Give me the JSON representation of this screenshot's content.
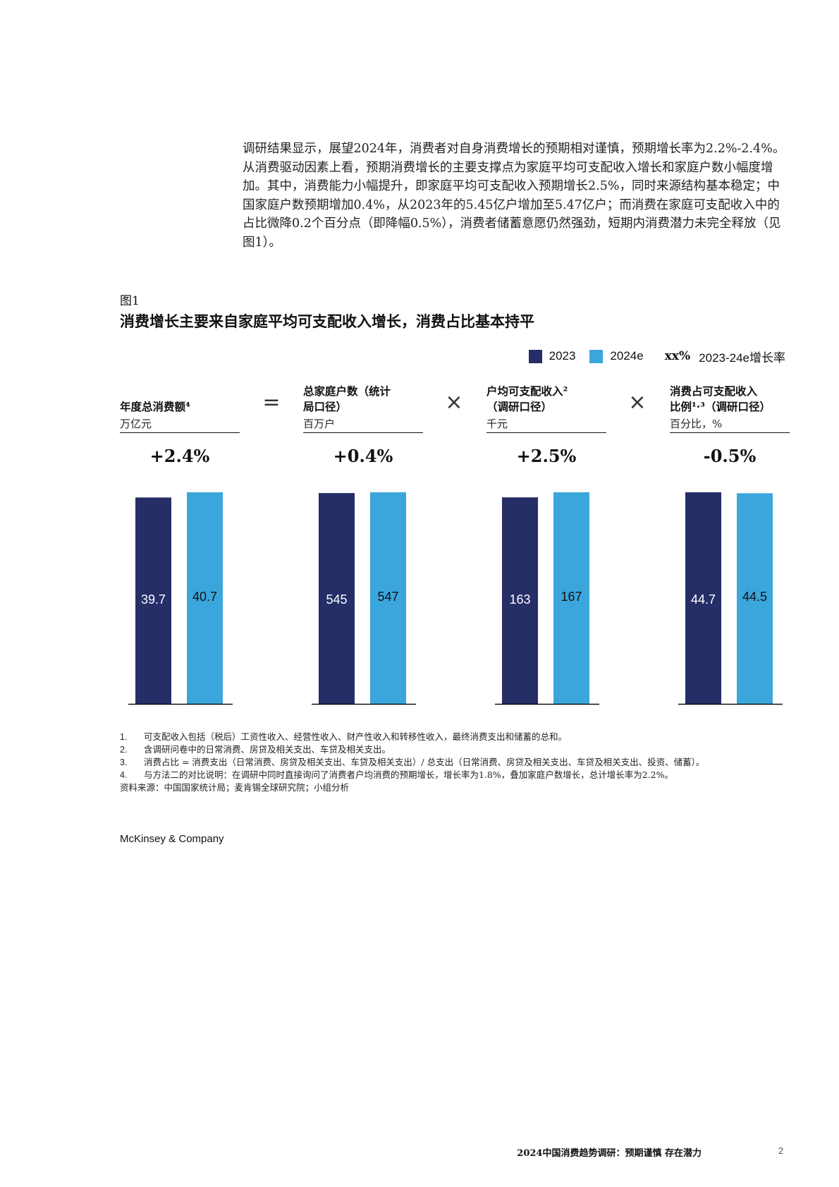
{
  "intro_paragraph": "调研结果显示，展望2024年，消费者对自身消费增长的预期相对谨慎，预期增长率为2.2%-2.4%。从消费驱动因素上看，预期消费增长的主要支撑点为家庭平均可支配收入增长和家庭户数小幅度增加。其中，消费能力小幅提升，即家庭平均可支配收入预期增长2.5%，同时来源结构基本稳定；中国家庭户数预期增加0.4%，从2023年的5.45亿户增加至5.47亿户；而消费在家庭可支配收入中的占比微降0.2个百分点（即降幅0.5%），消费者储蓄意愿仍然强劲，短期内消费潜力未完全释放（见图1）。",
  "figure": {
    "label": "图1",
    "title": "消费增长主要来自家庭平均可支配收入增长，消费占比基本持平"
  },
  "legend": {
    "series_2023": "2023",
    "series_2024e": "2024e",
    "growth_marker": "xx%",
    "growth_label": "2023-24e增长率"
  },
  "operators": [
    "=",
    "×",
    "×"
  ],
  "colors": {
    "series_2023": "#252e66",
    "series_2024e": "#3ba6dc"
  },
  "chart_data": {
    "type": "bar",
    "series_names": [
      "2023",
      "2024e"
    ],
    "panels": [
      {
        "header": "年度总消费额⁴",
        "unit": "万亿元",
        "growth": "+2.4%",
        "values": [
          39.7,
          40.7
        ],
        "labels": [
          "39.7",
          "40.7"
        ]
      },
      {
        "header": "总家庭户数（统计\n局口径）",
        "unit": "百万户",
        "growth": "+0.4%",
        "values": [
          545,
          547
        ],
        "labels": [
          "545",
          "547"
        ]
      },
      {
        "header": "户均可支配收入²\n（调研口径）",
        "unit": "千元",
        "growth": "+2.5%",
        "values": [
          163,
          167
        ],
        "labels": [
          "163",
          "167"
        ]
      },
      {
        "header": "消费占可支配收入\n比例¹·³（调研口径）",
        "unit": "百分比，%",
        "growth": "-0.5%",
        "values": [
          44.7,
          44.5
        ],
        "labels": [
          "44.7",
          "44.5"
        ]
      }
    ]
  },
  "footnotes": [
    {
      "n": "1.",
      "text": "可支配收入包括（税后）工资性收入、经营性收入、财产性收入和转移性收入，最终消费支出和储蓄的总和。"
    },
    {
      "n": "2.",
      "text": "含调研问卷中的日常消费、房贷及相关支出、车贷及相关支出。"
    },
    {
      "n": "3.",
      "text": "消费占比 = 消费支出（日常消费、房贷及相关支出、车贷及相关支出）/ 总支出（日常消费、房贷及相关支出、车贷及相关支出、投资、储蓄）。"
    },
    {
      "n": "4.",
      "text": "与方法二的对比说明：在调研中同时直接询问了消费者户均消费的预期增长，增长率为1.8%，叠加家庭户数增长，总计增长率为2.2%。"
    }
  ],
  "source": "资料来源：中国国家统计局；麦肯锡全球研究院；小组分析",
  "brand": "McKinsey & Company",
  "footer": {
    "doc_title": "2024中国消费趋势调研：预期谨慎 存在潜力",
    "page_number": "2"
  }
}
